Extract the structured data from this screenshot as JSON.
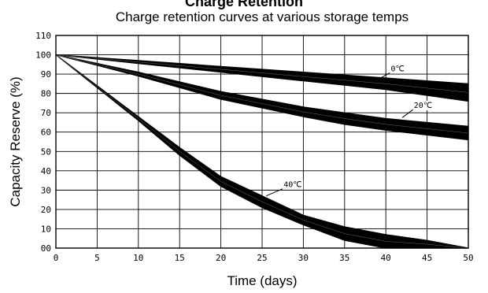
{
  "chart_data": {
    "type": "area",
    "title": "Charge Retention",
    "subtitle": "Charge retention curves at various storage temps",
    "xlabel": "Time (days)",
    "ylabel": "Capacity Reserve (%)",
    "xlim": [
      0,
      50
    ],
    "ylim": [
      0,
      110
    ],
    "x_ticks": [
      "0",
      "5",
      "10",
      "15",
      "20",
      "25",
      "30",
      "35",
      "40",
      "45",
      "50"
    ],
    "y_ticks": [
      "00",
      "10",
      "20",
      "30",
      "40",
      "50",
      "60",
      "70",
      "80",
      "90",
      "100",
      "110"
    ],
    "grid": true,
    "series": [
      {
        "name": "0℃",
        "x": [
          0,
          10,
          20,
          30,
          40,
          50
        ],
        "upper": [
          100,
          97,
          94,
          91,
          88,
          85
        ],
        "lower": [
          100,
          95.5,
          91,
          86.5,
          82,
          76
        ]
      },
      {
        "name": "20℃",
        "x": [
          0,
          10,
          20,
          30,
          35,
          40,
          50
        ],
        "upper": [
          100,
          91,
          81,
          73,
          70,
          67,
          63
        ],
        "lower": [
          100,
          89,
          77,
          68,
          64,
          61,
          56
        ]
      },
      {
        "name": "40℃",
        "x": [
          0,
          5,
          10,
          15,
          20,
          25,
          30,
          35,
          40,
          45,
          50
        ],
        "upper": [
          100,
          84,
          68,
          52,
          37,
          27,
          17,
          11,
          7,
          4,
          0
        ],
        "lower": [
          100,
          83,
          66,
          48,
          32,
          21,
          12,
          4,
          0,
          0,
          0
        ]
      }
    ]
  }
}
